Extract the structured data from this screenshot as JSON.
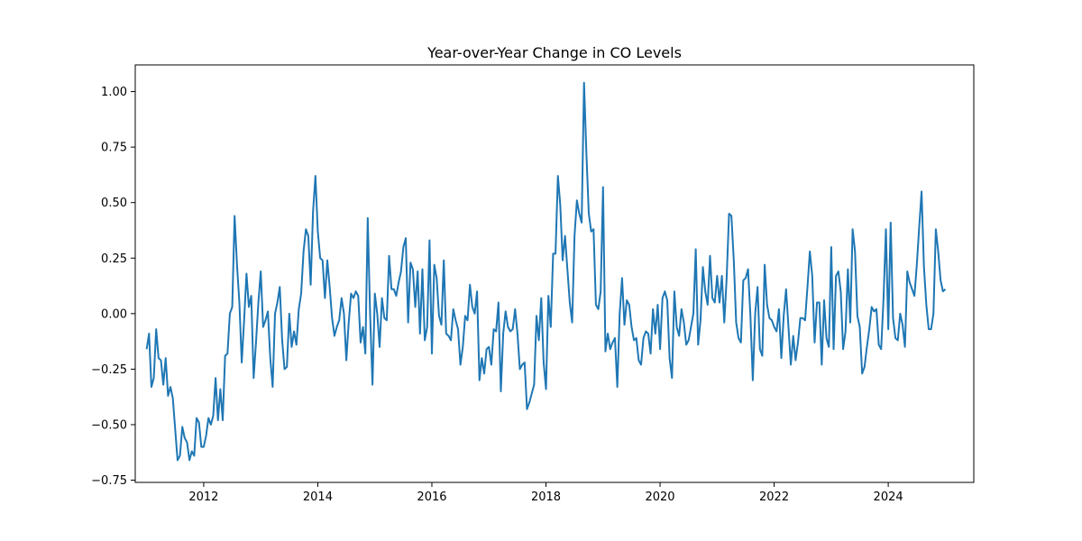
{
  "chart_data": {
    "type": "line",
    "title": "Year-over-Year Change in CO Levels",
    "xlabel": "",
    "ylabel": "",
    "xlim": [
      2010.8,
      2025.5
    ],
    "ylim": [
      -0.76,
      1.12
    ],
    "x_ticks": [
      2012,
      2014,
      2016,
      2018,
      2020,
      2022,
      2024
    ],
    "y_ticks": [
      -0.75,
      -0.5,
      -0.25,
      0.0,
      0.25,
      0.5,
      0.75,
      1.0
    ],
    "y_tick_labels": [
      "−0.75",
      "−0.50",
      "−0.25",
      "0.00",
      "0.25",
      "0.50",
      "0.75",
      "1.00"
    ],
    "grid": false,
    "legend": "none",
    "series": [
      {
        "color": "#1f77b4",
        "x_start": 2011.0,
        "x_step": 0.04167,
        "values": [
          -0.16,
          -0.09,
          -0.33,
          -0.29,
          -0.07,
          -0.2,
          -0.21,
          -0.32,
          -0.2,
          -0.37,
          -0.33,
          -0.38,
          -0.52,
          -0.66,
          -0.64,
          -0.51,
          -0.56,
          -0.58,
          -0.66,
          -0.62,
          -0.64,
          -0.47,
          -0.49,
          -0.6,
          -0.6,
          -0.55,
          -0.47,
          -0.5,
          -0.46,
          -0.29,
          -0.48,
          -0.34,
          -0.48,
          -0.19,
          -0.18,
          0.0,
          0.03,
          0.44,
          0.22,
          0.05,
          -0.22,
          -0.03,
          0.18,
          0.03,
          0.08,
          -0.29,
          -0.13,
          0.05,
          0.19,
          -0.06,
          -0.03,
          0.01,
          -0.2,
          -0.33,
          0.0,
          0.05,
          0.12,
          -0.12,
          -0.25,
          -0.24,
          0.0,
          -0.15,
          -0.08,
          -0.14,
          0.02,
          0.09,
          0.28,
          0.38,
          0.35,
          0.13,
          0.46,
          0.62,
          0.37,
          0.25,
          0.24,
          0.07,
          0.24,
          0.12,
          -0.02,
          -0.1,
          -0.06,
          -0.03,
          0.07,
          0.0,
          -0.21,
          -0.04,
          0.09,
          0.07,
          0.1,
          0.08,
          -0.13,
          -0.06,
          -0.18,
          0.43,
          0.0,
          -0.32,
          0.09,
          0.0,
          -0.15,
          0.07,
          -0.02,
          -0.03,
          0.26,
          0.11,
          0.11,
          0.08,
          0.14,
          0.19,
          0.3,
          0.34,
          -0.04,
          0.23,
          0.2,
          0.03,
          0.19,
          -0.09,
          0.2,
          -0.12,
          -0.06,
          0.33,
          -0.18,
          0.22,
          0.16,
          -0.01,
          -0.05,
          0.24,
          -0.09,
          -0.1,
          -0.12,
          0.02,
          -0.03,
          -0.07,
          -0.23,
          -0.15,
          -0.01,
          -0.03,
          0.13,
          0.03,
          0.0,
          0.1,
          -0.3,
          -0.2,
          -0.27,
          -0.16,
          -0.15,
          -0.23,
          -0.07,
          -0.08,
          0.05,
          -0.35,
          -0.09,
          0.01,
          -0.06,
          -0.08,
          -0.07,
          0.02,
          -0.09,
          -0.25,
          -0.23,
          -0.22,
          -0.43,
          -0.4,
          -0.36,
          -0.32,
          -0.01,
          -0.12,
          0.07,
          -0.22,
          -0.34,
          0.08,
          -0.06,
          0.27,
          0.27,
          0.62,
          0.49,
          0.24,
          0.35,
          0.2,
          0.05,
          -0.04,
          0.35,
          0.51,
          0.45,
          0.41,
          1.04,
          0.72,
          0.45,
          0.37,
          0.38,
          0.04,
          0.02,
          0.1,
          0.57,
          -0.17,
          -0.09,
          -0.16,
          -0.13,
          -0.11,
          -0.33,
          0.0,
          0.16,
          -0.05,
          0.06,
          0.04,
          -0.06,
          -0.12,
          -0.11,
          -0.21,
          -0.23,
          -0.11,
          -0.08,
          -0.09,
          -0.18,
          0.02,
          -0.09,
          0.04,
          -0.16,
          0.07,
          0.1,
          0.06,
          -0.2,
          -0.29,
          0.1,
          -0.06,
          -0.1,
          0.02,
          -0.04,
          -0.14,
          -0.12,
          -0.06,
          0.0,
          0.29,
          -0.14,
          -0.03,
          0.21,
          0.1,
          0.04,
          0.26,
          0.07,
          0.05,
          0.17,
          0.05,
          0.17,
          -0.04,
          0.16,
          0.45,
          0.44,
          0.24,
          -0.04,
          -0.11,
          -0.13,
          0.15,
          0.16,
          0.2,
          -0.01,
          -0.3,
          0.0,
          0.12,
          -0.16,
          -0.19,
          0.22,
          0.04,
          -0.02,
          -0.03,
          -0.06,
          -0.08,
          0.02,
          -0.2,
          -0.01,
          0.11,
          -0.06,
          -0.23,
          -0.1,
          -0.21,
          -0.13,
          -0.02,
          -0.02,
          -0.03,
          0.12,
          0.28,
          0.17,
          -0.13,
          0.05,
          0.05,
          -0.23,
          0.06,
          -0.11,
          -0.15,
          0.3,
          -0.16,
          0.17,
          0.19,
          0.1,
          -0.16,
          -0.08,
          0.2,
          -0.04,
          0.38,
          0.28,
          -0.01,
          -0.06,
          -0.27,
          -0.24,
          -0.15,
          -0.07,
          0.03,
          0.01,
          0.02,
          -0.14,
          -0.16,
          0.07,
          0.38,
          -0.07,
          0.41,
          -0.02,
          -0.11,
          -0.12,
          0.0,
          -0.05,
          -0.15,
          0.19,
          0.14,
          0.11,
          0.08,
          0.22,
          0.39,
          0.55,
          0.21,
          0.04,
          -0.07,
          -0.07,
          0.0,
          0.38,
          0.28,
          0.15,
          0.1,
          0.11
        ]
      }
    ]
  }
}
